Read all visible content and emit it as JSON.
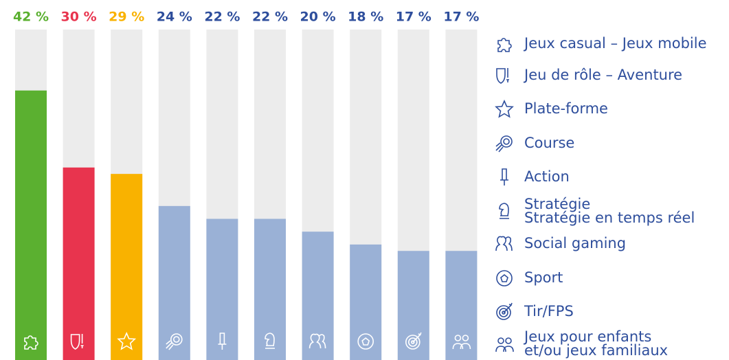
{
  "chart_data": {
    "type": "bar",
    "categories": [
      "Jeux casual – Jeux mobile",
      "Jeu de rôle – Aventure",
      "Plate-forme",
      "Course",
      "Action",
      [
        "Stratégie",
        "Stratégie en temps réel"
      ],
      "Social gaming",
      "Sport",
      "Tir/FPS",
      [
        "Jeux pour enfants",
        "et/ou jeux familiaux"
      ]
    ],
    "values": [
      42,
      30,
      29,
      24,
      22,
      22,
      20,
      18,
      17,
      17
    ],
    "value_labels": [
      "42 %",
      "30 %",
      "29 %",
      "24 %",
      "22 %",
      "22 %",
      "20 %",
      "18 %",
      "17 %",
      "17 %"
    ],
    "colors": [
      "#5bb030",
      "#e8344e",
      "#f9b200",
      "#9ab1d6",
      "#9ab1d6",
      "#9ab1d6",
      "#9ab1d6",
      "#9ab1d6",
      "#9ab1d6",
      "#9ab1d6"
    ],
    "label_colors": [
      "#5bb030",
      "#e8344e",
      "#f9b200",
      "#2e4e9c",
      "#2e4e9c",
      "#2e4e9c",
      "#2e4e9c",
      "#2e4e9c",
      "#2e4e9c",
      "#2e4e9c"
    ],
    "track_color": "#ececec",
    "legend_color": "#2e4e9c",
    "ylim": [
      0,
      51.5
    ]
  }
}
